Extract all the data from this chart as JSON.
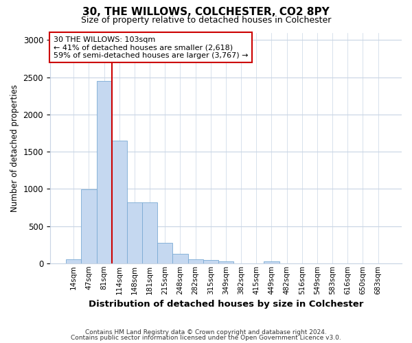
{
  "title": "30, THE WILLOWS, COLCHESTER, CO2 8PY",
  "subtitle": "Size of property relative to detached houses in Colchester",
  "xlabel": "Distribution of detached houses by size in Colchester",
  "ylabel": "Number of detached properties",
  "footer_line1": "Contains HM Land Registry data © Crown copyright and database right 2024.",
  "footer_line2": "Contains public sector information licensed under the Open Government Licence v3.0.",
  "bin_labels": [
    "14sqm",
    "47sqm",
    "81sqm",
    "114sqm",
    "148sqm",
    "181sqm",
    "215sqm",
    "248sqm",
    "282sqm",
    "315sqm",
    "349sqm",
    "382sqm",
    "415sqm",
    "449sqm",
    "482sqm",
    "516sqm",
    "549sqm",
    "583sqm",
    "616sqm",
    "650sqm",
    "683sqm"
  ],
  "bar_values": [
    55,
    990,
    2450,
    1650,
    820,
    820,
    270,
    130,
    55,
    40,
    30,
    0,
    0,
    30,
    0,
    0,
    0,
    0,
    0,
    0,
    0
  ],
  "bar_color": "#c5d8f0",
  "bar_edge_color": "#7aaad4",
  "grid_color": "#c8d4e4",
  "subject_line_color": "#cc0000",
  "annotation_text": "30 THE WILLOWS: 103sqm\n← 41% of detached houses are smaller (2,618)\n59% of semi-detached houses are larger (3,767) →",
  "annotation_box_facecolor": "#ffffff",
  "annotation_box_edgecolor": "#cc0000",
  "ylim": [
    0,
    3100
  ],
  "yticks": [
    0,
    500,
    1000,
    1500,
    2000,
    2500,
    3000
  ],
  "bg_color": "#ffffff",
  "subject_line_xindex": 2.5
}
